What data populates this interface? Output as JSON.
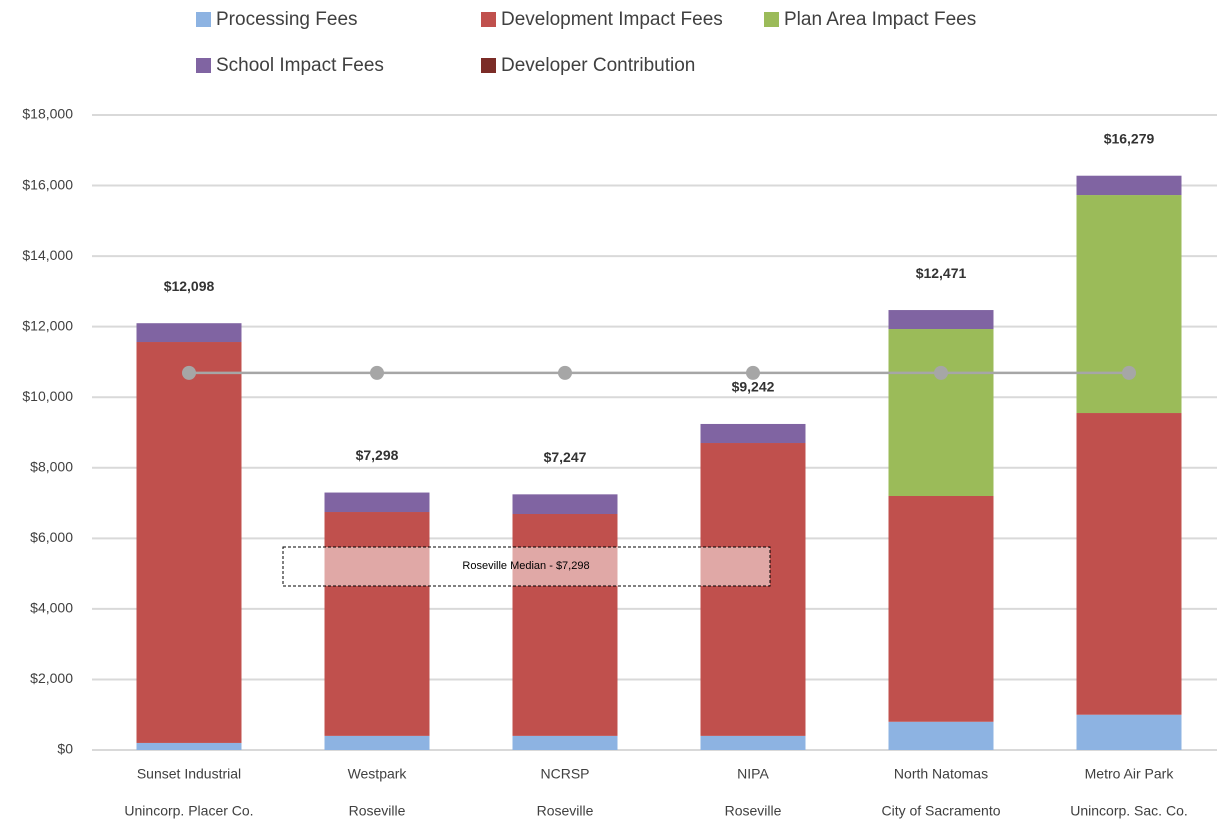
{
  "chart_data": {
    "type": "bar",
    "stacked": true,
    "categories": [
      "Sunset Industrial",
      "Westpark",
      "NCRSP",
      "NIPA",
      "North Natomas",
      "Metro Air Park"
    ],
    "subcategories": [
      "Unincorp. Placer Co.",
      "Roseville",
      "Roseville",
      "Roseville",
      "City of Sacramento",
      "Unincorp. Sac. Co."
    ],
    "series": [
      {
        "name": "Processing Fees",
        "color": "#8db3e2",
        "values": [
          200,
          400,
          400,
          400,
          800,
          1000
        ]
      },
      {
        "name": "Development Impact Fees",
        "color": "#c0504d",
        "values": [
          11365,
          6346,
          6290,
          8302,
          6400,
          8552
        ]
      },
      {
        "name": "Plan Area Impact Fees",
        "color": "#9bbb59",
        "values": [
          0,
          0,
          0,
          0,
          4733,
          6179
        ]
      },
      {
        "name": "School Impact Fees",
        "color": "#8064a2",
        "values": [
          533,
          552,
          557,
          540,
          538,
          548
        ]
      },
      {
        "name": "Developer Contribution",
        "color": "#7b2c27",
        "values": [
          0,
          0,
          0,
          0,
          0,
          0
        ]
      }
    ],
    "line": {
      "type": "line",
      "color": "#a6a6a6",
      "values": [
        10690,
        10690,
        10690,
        10690,
        10690,
        10690
      ]
    },
    "totals": [
      12098,
      7298,
      7247,
      9242,
      12471,
      16279
    ],
    "total_labels": [
      "$12,098",
      "$7,298",
      "$7,247",
      "$9,242",
      "$12,471",
      "$16,279"
    ],
    "annotation": "Roseville Median - $7,298",
    "ylim": [
      0,
      18000
    ],
    "yticks": [
      {
        "value": 0,
        "label": "$0"
      },
      {
        "value": 2000,
        "label": "$2,000"
      },
      {
        "value": 4000,
        "label": "$4,000"
      },
      {
        "value": 6000,
        "label": "$6,000"
      },
      {
        "value": 8000,
        "label": "$8,000"
      },
      {
        "value": 10000,
        "label": "$10,000"
      },
      {
        "value": 12000,
        "label": "$12,000"
      },
      {
        "value": 14000,
        "label": "$14,000"
      },
      {
        "value": 16000,
        "label": "$16,000"
      },
      {
        "value": 18000,
        "label": "$18,000"
      }
    ],
    "grid": true,
    "legend": "top"
  }
}
